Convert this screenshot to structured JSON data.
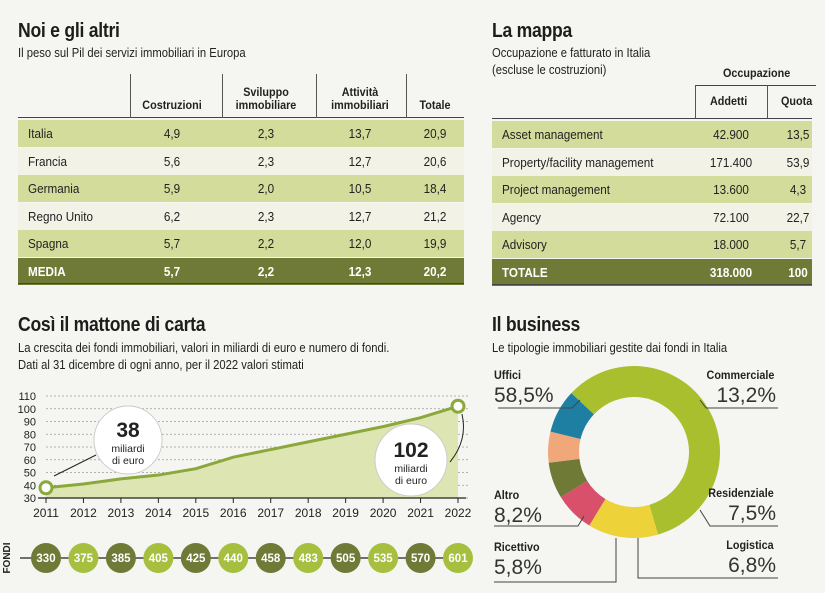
{
  "europe": {
    "title": "Noi e gli altri",
    "subtitle": "Il peso sul Pil dei servizi immobiliari in Europa",
    "columns": [
      {
        "l1": "",
        "l2": "Costruzioni"
      },
      {
        "l1": "Sviluppo",
        "l2": "immobiliare"
      },
      {
        "l1": "Attività",
        "l2": "immobiliari"
      },
      {
        "l1": "",
        "l2": "Totale"
      }
    ],
    "rows": [
      {
        "country": "Italia",
        "values": [
          "4,9",
          "2,3",
          "13,7",
          "20,9"
        ]
      },
      {
        "country": "Francia",
        "values": [
          "5,6",
          "2,3",
          "12,7",
          "20,6"
        ]
      },
      {
        "country": "Germania",
        "values": [
          "5,9",
          "2,0",
          "10,5",
          "18,4"
        ]
      },
      {
        "country": "Regno Unito",
        "values": [
          "6,2",
          "2,3",
          "12,7",
          "21,2"
        ]
      },
      {
        "country": "Spagna",
        "values": [
          "5,7",
          "2,2",
          "12,0",
          "19,9"
        ]
      }
    ],
    "media": {
      "country": "MEDIA",
      "values": [
        "5,7",
        "2,2",
        "12,3",
        "20,2"
      ]
    }
  },
  "mappa": {
    "title": "La mappa",
    "subtitle_l1": "Occupazione e fatturato in Italia",
    "subtitle_l2": "(escluse le costruzioni)",
    "group_header": "Occupazione",
    "col_addetti": "Addetti",
    "col_quota": "Quota",
    "rows": [
      {
        "label": "Asset management",
        "addetti": "42.900",
        "quota": "13,5"
      },
      {
        "label": "Property/facility management",
        "addetti": "171.400",
        "quota": "53,9"
      },
      {
        "label": "Project management",
        "addetti": "13.600",
        "quota": "4,3"
      },
      {
        "label": "Agency",
        "addetti": "72.100",
        "quota": "22,7"
      },
      {
        "label": "Advisory",
        "addetti": "18.000",
        "quota": "5,7"
      }
    ],
    "total": {
      "label": "TOTALE",
      "addetti": "318.000",
      "quota": "100"
    }
  },
  "fondi": {
    "title": "Così il mattone di carta",
    "subtitle_l1": "La crescita dei fondi immobiliari, valori in miliardi di euro e numero di fondi.",
    "subtitle_l2": "Dati al 31 dicembre di ogni anno, per il 2022 valori stimati",
    "side_label": "FONDI",
    "callout_start": {
      "value": "38",
      "unit_l1": "miliardi",
      "unit_l2": "di euro"
    },
    "callout_end": {
      "value": "102",
      "unit_l1": "miliardi",
      "unit_l2": "di euro"
    }
  },
  "business": {
    "title": "Il business",
    "subtitle": "Le tipologie immobiliari gestite dai fondi in Italia"
  },
  "chart_data": [
    {
      "type": "area",
      "title": "Così il mattone di carta",
      "x": [
        "2011",
        "2012",
        "2013",
        "2014",
        "2015",
        "2016",
        "2017",
        "2018",
        "2019",
        "2020",
        "2021",
        "2022"
      ],
      "values": [
        38,
        41,
        45,
        48,
        53,
        62,
        68,
        74,
        80,
        86,
        93,
        102
      ],
      "ylim": [
        30,
        110
      ],
      "yticks": [
        "30",
        "50",
        "70",
        "90",
        "110"
      ],
      "yticks_extra": [
        "40",
        "60",
        "80",
        "100"
      ],
      "fund_counts": [
        "330",
        "375",
        "385",
        "405",
        "425",
        "440",
        "458",
        "483",
        "505",
        "535",
        "570",
        "601"
      ],
      "colors": {
        "area": "#dde6b3",
        "line": "#8aa83b",
        "dark_circle": "#6f7a37",
        "light_circle": "#a7bf3f"
      }
    },
    {
      "type": "pie",
      "title": "Il business",
      "slices": [
        {
          "name": "Uffici",
          "pct": "58,5%",
          "value": 58.5,
          "color": "#a9bf2e"
        },
        {
          "name": "Commerciale",
          "pct": "13,2%",
          "value": 13.2,
          "color": "#edd23a"
        },
        {
          "name": "Residenziale",
          "pct": "7,5%",
          "value": 7.5,
          "color": "#d9506a"
        },
        {
          "name": "Logistica",
          "pct": "6,8%",
          "value": 6.8,
          "color": "#6f7a37"
        },
        {
          "name": "Ricettivo",
          "pct": "5,8%",
          "value": 5.8,
          "color": "#f0a77a"
        },
        {
          "name": "Altro",
          "pct": "8,2%",
          "value": 8.2,
          "color": "#1f7fa3"
        }
      ]
    }
  ]
}
